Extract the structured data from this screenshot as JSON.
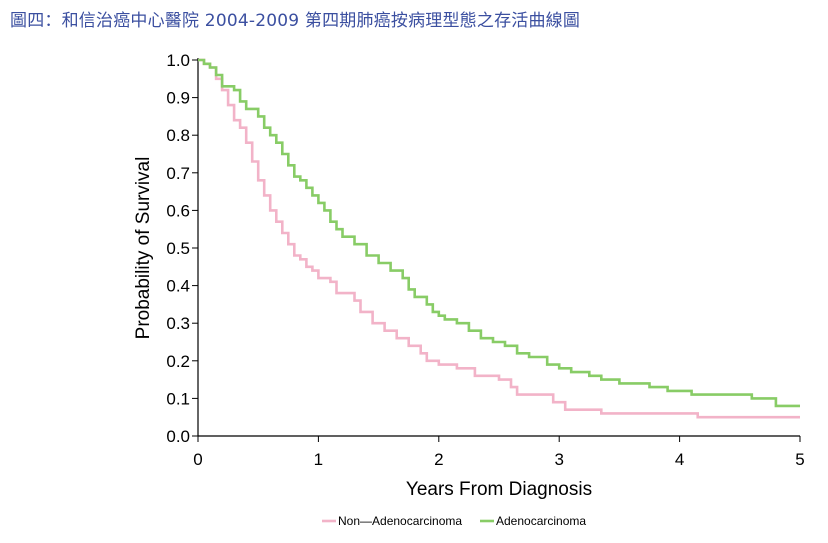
{
  "page_title": "圖四：和信治癌中心醫院 2004-2009 第四期肺癌按病理型態之存活曲線圖",
  "colors": {
    "title": "#3b4fa0",
    "non_adeno": "#f2b3c8",
    "adeno": "#88cc66",
    "axis": "#000000"
  },
  "chart_data": {
    "type": "line",
    "title": "",
    "xlabel": "Years From Diagnosis",
    "ylabel": "Probability of Survival",
    "xlim": [
      0,
      5
    ],
    "ylim": [
      0,
      1.0
    ],
    "x_ticks": [
      "0",
      "1",
      "2",
      "3",
      "4",
      "5"
    ],
    "y_ticks": [
      "0.0",
      "0.1",
      "0.2",
      "0.3",
      "0.4",
      "0.5",
      "0.6",
      "0.7",
      "0.8",
      "0.9",
      "1.0"
    ],
    "grid": false,
    "legend_position": "bottom-center",
    "step": true,
    "series": [
      {
        "name": "Non—Adenocarcinoma",
        "color": "#f2b3c8",
        "points": [
          [
            0,
            1.0
          ],
          [
            0.05,
            0.99
          ],
          [
            0.1,
            0.98
          ],
          [
            0.15,
            0.95
          ],
          [
            0.2,
            0.92
          ],
          [
            0.25,
            0.88
          ],
          [
            0.3,
            0.84
          ],
          [
            0.35,
            0.82
          ],
          [
            0.4,
            0.78
          ],
          [
            0.45,
            0.73
          ],
          [
            0.5,
            0.68
          ],
          [
            0.55,
            0.64
          ],
          [
            0.6,
            0.6
          ],
          [
            0.65,
            0.57
          ],
          [
            0.7,
            0.54
          ],
          [
            0.75,
            0.51
          ],
          [
            0.8,
            0.48
          ],
          [
            0.85,
            0.47
          ],
          [
            0.9,
            0.45
          ],
          [
            0.95,
            0.44
          ],
          [
            1.0,
            0.42
          ],
          [
            1.1,
            0.41
          ],
          [
            1.15,
            0.38
          ],
          [
            1.3,
            0.36
          ],
          [
            1.35,
            0.33
          ],
          [
            1.45,
            0.3
          ],
          [
            1.55,
            0.28
          ],
          [
            1.65,
            0.26
          ],
          [
            1.75,
            0.24
          ],
          [
            1.85,
            0.22
          ],
          [
            1.9,
            0.2
          ],
          [
            2.0,
            0.19
          ],
          [
            2.15,
            0.18
          ],
          [
            2.3,
            0.16
          ],
          [
            2.5,
            0.15
          ],
          [
            2.6,
            0.13
          ],
          [
            2.65,
            0.11
          ],
          [
            2.95,
            0.09
          ],
          [
            3.05,
            0.07
          ],
          [
            3.35,
            0.06
          ],
          [
            4.15,
            0.05
          ],
          [
            5.0,
            0.05
          ]
        ]
      },
      {
        "name": "Adenocarcinoma",
        "color": "#88cc66",
        "points": [
          [
            0,
            1.0
          ],
          [
            0.05,
            0.99
          ],
          [
            0.1,
            0.98
          ],
          [
            0.15,
            0.96
          ],
          [
            0.2,
            0.93
          ],
          [
            0.3,
            0.92
          ],
          [
            0.35,
            0.89
          ],
          [
            0.4,
            0.87
          ],
          [
            0.5,
            0.85
          ],
          [
            0.55,
            0.82
          ],
          [
            0.6,
            0.8
          ],
          [
            0.65,
            0.78
          ],
          [
            0.7,
            0.75
          ],
          [
            0.75,
            0.72
          ],
          [
            0.8,
            0.69
          ],
          [
            0.85,
            0.68
          ],
          [
            0.9,
            0.66
          ],
          [
            0.95,
            0.64
          ],
          [
            1.0,
            0.62
          ],
          [
            1.05,
            0.6
          ],
          [
            1.1,
            0.57
          ],
          [
            1.15,
            0.55
          ],
          [
            1.2,
            0.53
          ],
          [
            1.3,
            0.51
          ],
          [
            1.4,
            0.48
          ],
          [
            1.5,
            0.46
          ],
          [
            1.6,
            0.44
          ],
          [
            1.7,
            0.42
          ],
          [
            1.75,
            0.39
          ],
          [
            1.8,
            0.37
          ],
          [
            1.9,
            0.35
          ],
          [
            1.95,
            0.33
          ],
          [
            2.0,
            0.32
          ],
          [
            2.05,
            0.31
          ],
          [
            2.15,
            0.3
          ],
          [
            2.25,
            0.28
          ],
          [
            2.35,
            0.26
          ],
          [
            2.45,
            0.25
          ],
          [
            2.55,
            0.24
          ],
          [
            2.65,
            0.22
          ],
          [
            2.75,
            0.21
          ],
          [
            2.9,
            0.19
          ],
          [
            3.0,
            0.18
          ],
          [
            3.1,
            0.17
          ],
          [
            3.25,
            0.16
          ],
          [
            3.35,
            0.15
          ],
          [
            3.5,
            0.14
          ],
          [
            3.75,
            0.13
          ],
          [
            3.9,
            0.12
          ],
          [
            4.0,
            0.12
          ],
          [
            4.1,
            0.11
          ],
          [
            4.3,
            0.11
          ],
          [
            4.6,
            0.1
          ],
          [
            4.8,
            0.08
          ],
          [
            5.0,
            0.08
          ]
        ]
      }
    ]
  }
}
